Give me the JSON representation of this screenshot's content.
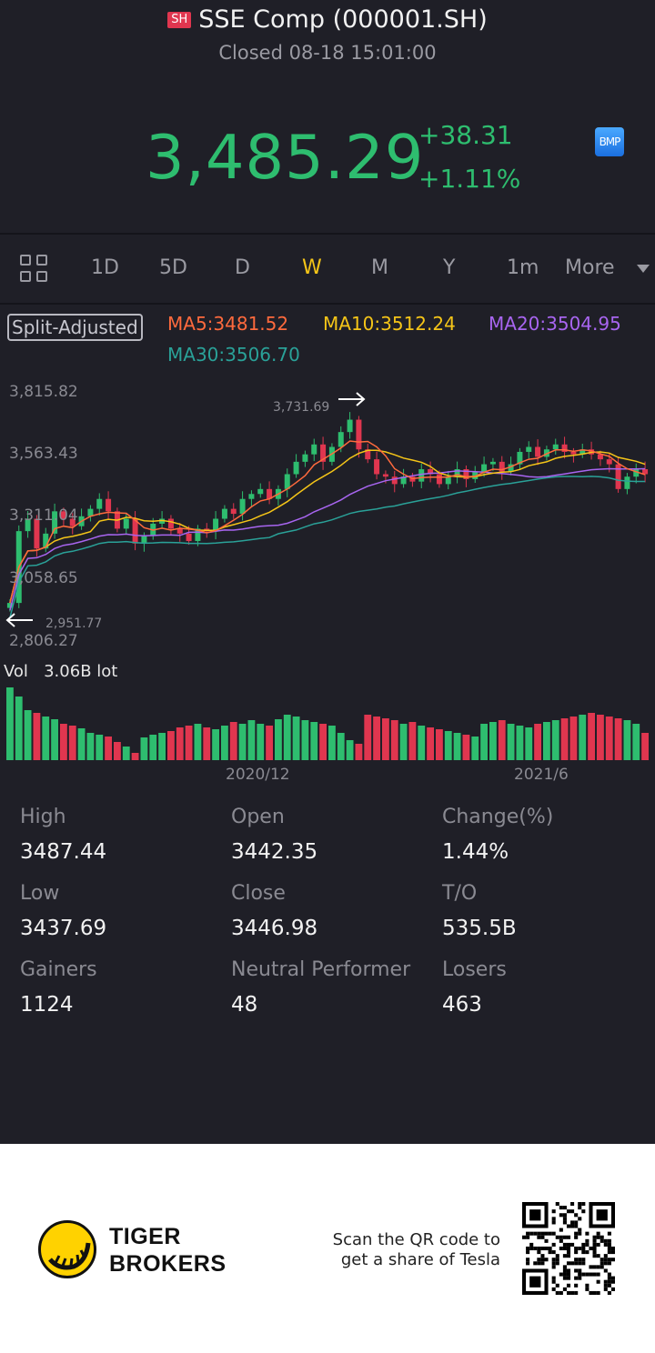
{
  "header": {
    "badge": "SH",
    "title": "SSE Comp (000001.SH)",
    "status": "Closed 08-18 15:01:00",
    "price": "3,485.29",
    "change": "+38.31",
    "change_pct": "+1.11%",
    "bmp_label": "BMP"
  },
  "tabs": [
    "1D",
    "5D",
    "D",
    "W",
    "M",
    "Y",
    "1m",
    "More"
  ],
  "active_tab": "W",
  "chart": {
    "split_label": "Split-Adjusted",
    "ma5": "MA5:3481.52",
    "ma10": "MA10:3512.24",
    "ma20": "MA20:3504.95",
    "ma30": "MA30:3506.70",
    "y_labels": [
      "3,815.82",
      "3,563.43",
      "3,311.04",
      "3,058.65",
      "2,806.27"
    ],
    "high_marker": "3,731.69",
    "low_marker": "2,951.77",
    "vol_label": "Vol",
    "vol_value": "3.06B lot",
    "x_labels": [
      "2020/12",
      "2021/6"
    ],
    "colors": {
      "up": "#2ebd6f",
      "down": "#e0364f",
      "ma5": "#ff6a3d",
      "ma10": "#f5c518",
      "ma20": "#a865f0",
      "ma30": "#2aa198"
    }
  },
  "chart_data": {
    "type": "candlestick",
    "period": "weekly",
    "ylim": [
      2806.27,
      3815.82
    ],
    "high": 3731.69,
    "low": 2951.77,
    "x_ticks": [
      "2020/12",
      "2021/6"
    ]
  },
  "stats": [
    {
      "label": "High",
      "value": "3487.44"
    },
    {
      "label": "Open",
      "value": "3442.35"
    },
    {
      "label": "Change(%)",
      "value": "1.44%"
    },
    {
      "label": "Low",
      "value": "3437.69"
    },
    {
      "label": "Close",
      "value": "3446.98"
    },
    {
      "label": "T/O",
      "value": "535.5B"
    },
    {
      "label": "Gainers",
      "value": "1124"
    },
    {
      "label": "Neutral Performer",
      "value": "48"
    },
    {
      "label": "Losers",
      "value": "463"
    }
  ],
  "footer": {
    "brand_line1": "TIGER",
    "brand_line2": "BROKERS",
    "scan_line1": "Scan the QR code to",
    "scan_line2": "get a share of Tesla"
  }
}
